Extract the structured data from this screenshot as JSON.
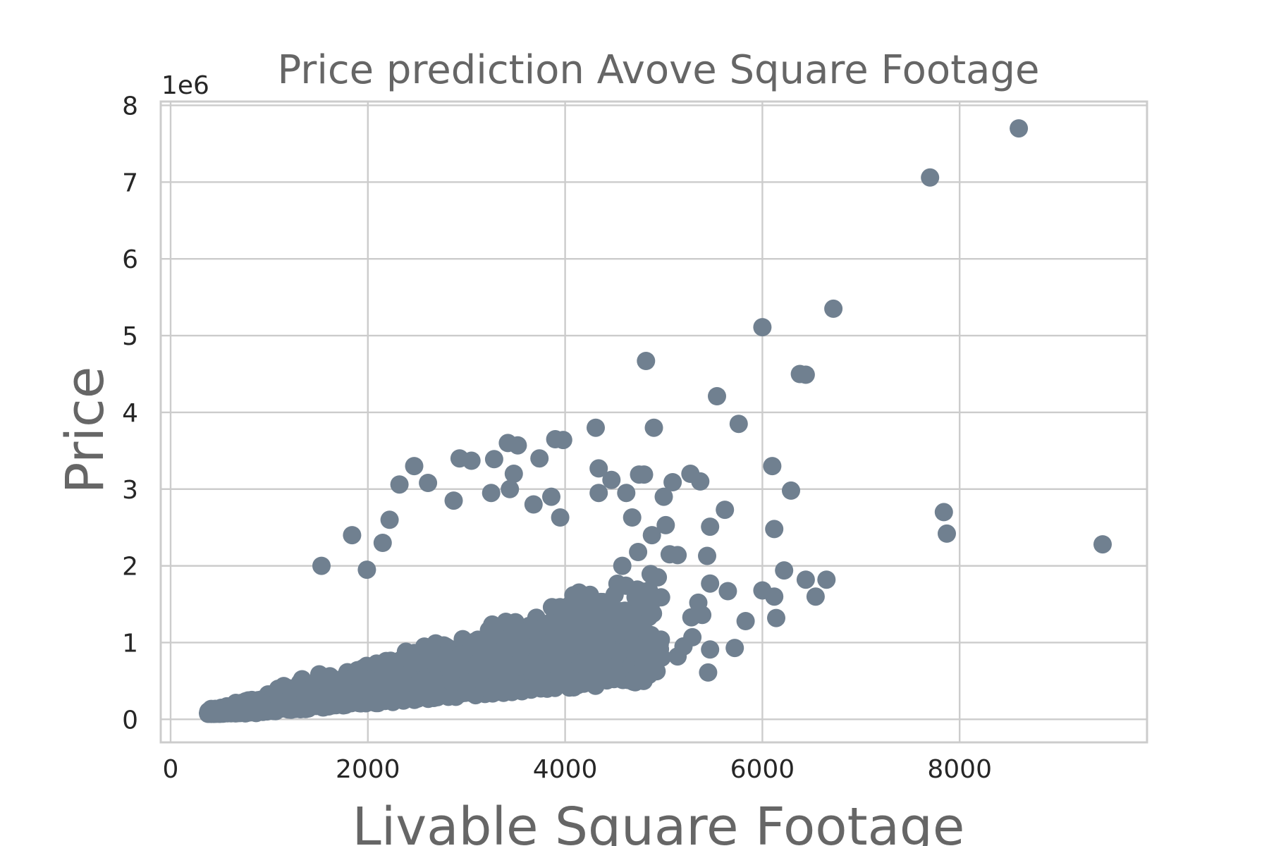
{
  "chart_data": {
    "type": "scatter",
    "title": "Price prediction Avove Square Footage",
    "xlabel": "Livable Square Footage",
    "ylabel": "Price",
    "y_offset_text": "1e6",
    "xlim": [
      -100,
      9900
    ],
    "ylim": [
      -300000,
      8050000
    ],
    "xticks": [
      0,
      2000,
      4000,
      6000,
      8000
    ],
    "xtick_labels": [
      "0",
      "2000",
      "4000",
      "6000",
      "8000"
    ],
    "yticks": [
      0,
      1000000,
      2000000,
      3000000,
      4000000,
      5000000,
      6000000,
      7000000,
      8000000
    ],
    "ytick_labels": [
      "0",
      "1",
      "2",
      "3",
      "4",
      "5",
      "6",
      "7",
      "8"
    ],
    "grid": true,
    "marker_color": "#708090",
    "points": [
      [
        8600,
        7700000
      ],
      [
        7700,
        7060000
      ],
      [
        6720,
        5350000
      ],
      [
        6000,
        5110000
      ],
      [
        4820,
        4670000
      ],
      [
        6380,
        4500000
      ],
      [
        6440,
        4490000
      ],
      [
        5540,
        4210000
      ],
      [
        5760,
        3850000
      ],
      [
        4310,
        3800000
      ],
      [
        4900,
        3800000
      ],
      [
        3900,
        3650000
      ],
      [
        3980,
        3640000
      ],
      [
        3420,
        3600000
      ],
      [
        3520,
        3570000
      ],
      [
        2930,
        3400000
      ],
      [
        3050,
        3370000
      ],
      [
        3280,
        3390000
      ],
      [
        3740,
        3400000
      ],
      [
        6100,
        3300000
      ],
      [
        2470,
        3300000
      ],
      [
        4340,
        3270000
      ],
      [
        3480,
        3200000
      ],
      [
        5270,
        3200000
      ],
      [
        4750,
        3190000
      ],
      [
        4800,
        3190000
      ],
      [
        4470,
        3120000
      ],
      [
        5370,
        3100000
      ],
      [
        5090,
        3090000
      ],
      [
        2320,
        3060000
      ],
      [
        2610,
        3080000
      ],
      [
        6290,
        2980000
      ],
      [
        3250,
        2950000
      ],
      [
        4620,
        2950000
      ],
      [
        4340,
        2950000
      ],
      [
        3440,
        3000000
      ],
      [
        5000,
        2900000
      ],
      [
        3860,
        2900000
      ],
      [
        2870,
        2850000
      ],
      [
        3680,
        2800000
      ],
      [
        7840,
        2700000
      ],
      [
        5620,
        2730000
      ],
      [
        4680,
        2630000
      ],
      [
        2220,
        2600000
      ],
      [
        3950,
        2630000
      ],
      [
        7870,
        2420000
      ],
      [
        9450,
        2280000
      ],
      [
        5470,
        2510000
      ],
      [
        5020,
        2530000
      ],
      [
        6120,
        2480000
      ],
      [
        1840,
        2400000
      ],
      [
        4880,
        2400000
      ],
      [
        2150,
        2300000
      ],
      [
        4740,
        2180000
      ],
      [
        5060,
        2150000
      ],
      [
        5140,
        2140000
      ],
      [
        5440,
        2130000
      ],
      [
        4580,
        2000000
      ],
      [
        1530,
        2000000
      ],
      [
        1990,
        1950000
      ],
      [
        6220,
        1940000
      ],
      [
        6440,
        1820000
      ],
      [
        6650,
        1820000
      ],
      [
        4940,
        1850000
      ],
      [
        5470,
        1770000
      ],
      [
        5650,
        1670000
      ],
      [
        6000,
        1680000
      ],
      [
        6120,
        1600000
      ],
      [
        6540,
        1600000
      ],
      [
        5350,
        1520000
      ],
      [
        5830,
        1280000
      ],
      [
        6140,
        1320000
      ],
      [
        5720,
        930000
      ],
      [
        5450,
        610000
      ],
      [
        5140,
        820000
      ],
      [
        4850,
        580000
      ],
      [
        5470,
        910000
      ],
      [
        5200,
        950000
      ],
      [
        4930,
        850000
      ],
      [
        5280,
        1330000
      ],
      [
        5390,
        1360000
      ],
      [
        5290,
        1070000
      ]
    ]
  }
}
